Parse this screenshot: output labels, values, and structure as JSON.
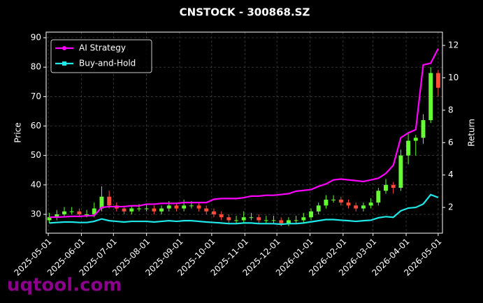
{
  "chart_data": {
    "type": "candlestick",
    "title": "CNSTOCK - 300868.SZ",
    "ylabel": "Price",
    "y2label": "Return",
    "watermark": "uqtool.com",
    "legend": "upper left",
    "grid": true,
    "up_color": "#66ff33",
    "down_color": "#ff4d3d",
    "x": [
      "2025-05-02",
      "2025-05-09",
      "2025-05-16",
      "2025-05-23",
      "2025-05-30",
      "2025-06-06",
      "2025-06-13",
      "2025-06-20",
      "2025-06-27",
      "2025-07-04",
      "2025-07-11",
      "2025-07-18",
      "2025-07-25",
      "2025-08-01",
      "2025-08-08",
      "2025-08-15",
      "2025-08-22",
      "2025-08-29",
      "2025-09-05",
      "2025-09-12",
      "2025-09-19",
      "2025-09-26",
      "2025-10-03",
      "2025-10-10",
      "2025-10-17",
      "2025-10-24",
      "2025-10-31",
      "2025-11-07",
      "2025-11-14",
      "2025-11-21",
      "2025-11-28",
      "2025-12-05",
      "2025-12-12",
      "2025-12-19",
      "2025-12-26",
      "2026-01-02",
      "2026-01-09",
      "2026-01-16",
      "2026-01-23",
      "2026-01-30",
      "2026-02-06",
      "2026-02-13",
      "2026-02-20",
      "2026-02-27",
      "2026-03-06",
      "2026-03-13",
      "2026-03-20",
      "2026-03-27",
      "2026-04-03",
      "2026-04-10",
      "2026-04-17",
      "2026-04-24",
      "2026-05-01"
    ],
    "open": [
      28,
      29,
      30,
      31,
      31,
      30,
      30,
      32,
      36,
      33,
      32,
      31,
      32,
      32,
      32,
      31,
      32,
      33,
      32,
      33,
      33,
      32,
      31,
      30,
      29,
      28,
      28,
      29,
      29,
      28,
      28,
      28,
      27,
      28,
      28,
      29,
      31,
      33,
      35,
      35,
      34,
      33,
      32,
      33,
      34,
      38,
      40,
      39,
      50,
      55,
      56,
      62,
      78
    ],
    "high": [
      30.5,
      31.5,
      32.5,
      32.5,
      32,
      31.5,
      34,
      39.5,
      38,
      34,
      33,
      33,
      33.5,
      33.5,
      33,
      33,
      34.5,
      34,
      35,
      34.5,
      34,
      33,
      32,
      31,
      30,
      29.5,
      31,
      30.5,
      30,
      29.5,
      29.5,
      29,
      29,
      29.5,
      30.5,
      32,
      34,
      36.5,
      36.5,
      36,
      35,
      34,
      34,
      35.5,
      39,
      42,
      41,
      52,
      58,
      57,
      64,
      80,
      79
    ],
    "low": [
      27,
      28,
      29,
      30,
      29,
      29,
      29,
      31,
      32,
      31,
      30,
      30,
      31,
      31,
      30,
      30,
      31,
      31,
      31,
      32,
      31,
      30,
      29,
      28,
      27,
      27,
      27,
      28,
      27,
      27,
      27,
      26,
      26,
      27,
      27,
      28,
      30,
      32,
      34,
      33,
      32,
      31,
      31,
      32,
      33,
      37,
      37,
      38,
      47,
      50,
      54,
      61,
      70
    ],
    "close": [
      29,
      30,
      31,
      31,
      30,
      30,
      32,
      36,
      33,
      32,
      31,
      32,
      32,
      32,
      31,
      32,
      33,
      32,
      33,
      33,
      32,
      31,
      30,
      29,
      28,
      28,
      29,
      29,
      28,
      28,
      28,
      27,
      28,
      28,
      29,
      31,
      33,
      35,
      35,
      34,
      33,
      32,
      33,
      34,
      38,
      40,
      39,
      50,
      55,
      56,
      62,
      78,
      73
    ],
    "series": [
      {
        "name": "AI Strategy",
        "color": "#ff00ff",
        "axis": "y2",
        "marker": "circle",
        "values": [
          1.4,
          1.4,
          1.42,
          1.45,
          1.45,
          1.48,
          1.5,
          2.0,
          2.05,
          2.05,
          2.05,
          2.1,
          2.1,
          2.2,
          2.2,
          2.25,
          2.25,
          2.25,
          2.3,
          2.3,
          2.3,
          2.3,
          2.5,
          2.55,
          2.55,
          2.55,
          2.6,
          2.7,
          2.7,
          2.75,
          2.75,
          2.8,
          2.85,
          3.0,
          3.05,
          3.1,
          3.3,
          3.45,
          3.7,
          3.75,
          3.7,
          3.65,
          3.6,
          3.7,
          3.8,
          4.1,
          4.6,
          6.3,
          6.6,
          6.8,
          10.8,
          10.9,
          11.8
        ]
      },
      {
        "name": "Buy-and-Hold",
        "color": "#1ee8e8",
        "axis": "y2",
        "marker": "square",
        "values": [
          1.04,
          1.07,
          1.1,
          1.1,
          1.07,
          1.07,
          1.14,
          1.29,
          1.18,
          1.14,
          1.1,
          1.14,
          1.14,
          1.14,
          1.1,
          1.14,
          1.18,
          1.14,
          1.18,
          1.18,
          1.14,
          1.1,
          1.07,
          1.04,
          1.0,
          1.0,
          1.04,
          1.04,
          1.0,
          1.0,
          1.0,
          0.96,
          1.0,
          1.0,
          1.04,
          1.11,
          1.18,
          1.25,
          1.25,
          1.21,
          1.18,
          1.14,
          1.18,
          1.21,
          1.36,
          1.43,
          1.39,
          1.79,
          1.96,
          2.0,
          2.21,
          2.79,
          2.61
        ]
      }
    ],
    "xlim": [
      "2025-04-29",
      "2026-05-05"
    ],
    "xticks": [
      "2025-05-01",
      "2025-06-01",
      "2025-07-01",
      "2025-08-01",
      "2025-09-01",
      "2025-10-01",
      "2025-11-01",
      "2025-12-01",
      "2026-01-01",
      "2026-02-01",
      "2026-03-01",
      "2026-04-01",
      "2026-05-01"
    ],
    "ylim": [
      23.6,
      91.9
    ],
    "yticks": [
      30,
      40,
      50,
      60,
      70,
      80,
      90
    ],
    "y2lim": [
      0.41,
      12.82
    ],
    "y2ticks": [
      2,
      4,
      6,
      8,
      10,
      12
    ]
  }
}
